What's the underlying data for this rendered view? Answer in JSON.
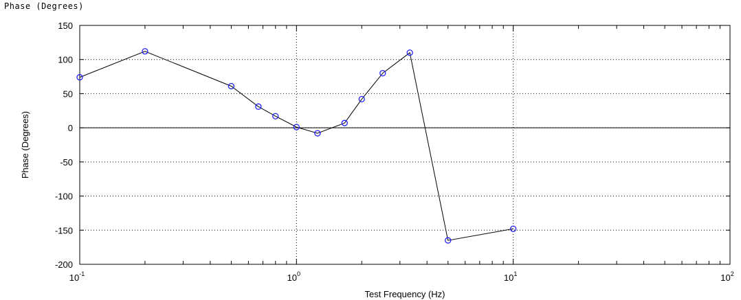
{
  "window": {
    "title": "Phase (Degrees)"
  },
  "chart_data": {
    "type": "line",
    "xlabel": "Test Frequency (Hz)",
    "ylabel": "Phase (Degrees)",
    "xscale": "log",
    "xlim": [
      0.1,
      100
    ],
    "ylim": [
      -200,
      150
    ],
    "yticks": [
      150,
      100,
      50,
      0,
      -50,
      -100,
      -150,
      -200
    ],
    "xticks": [
      {
        "base": "10",
        "exp": "-1",
        "value": 0.1
      },
      {
        "base": "10",
        "exp": "0",
        "value": 1
      },
      {
        "base": "10",
        "exp": "1",
        "value": 10
      },
      {
        "base": "10",
        "exp": "2",
        "value": 100
      }
    ],
    "grid": true,
    "zero_line": true,
    "series": [
      {
        "color": "#2020ff",
        "line_color": "#000000",
        "marker": "circle",
        "x": [
          0.1,
          0.2,
          0.5,
          0.667,
          0.8,
          1.0,
          1.25,
          1.667,
          2.0,
          2.5,
          3.333,
          5.0,
          10.0
        ],
        "y": [
          74,
          112,
          61,
          31,
          17,
          1,
          -8,
          7,
          42,
          80,
          110,
          -165,
          -148
        ]
      }
    ]
  }
}
